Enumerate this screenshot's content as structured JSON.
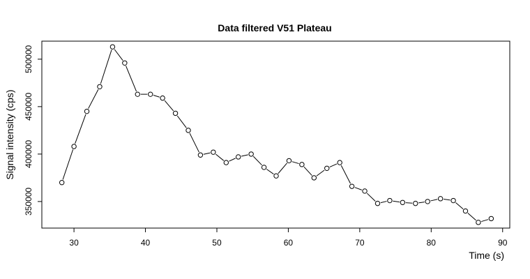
{
  "chart_data": {
    "type": "line",
    "title": "Data filtered V51 Plateau",
    "xlabel": "Time (s)",
    "ylabel": "Signal intensity (cps)",
    "xlim": [
      25.5,
      91
    ],
    "ylim": [
      322000,
      519000
    ],
    "x_ticks": [
      30,
      40,
      50,
      60,
      70,
      80,
      90
    ],
    "y_ticks": [
      350000,
      400000,
      450000,
      500000
    ],
    "grid": false,
    "legend": "none",
    "markers": "open-circle",
    "series": [
      {
        "x": [
          28.3,
          30.0,
          31.8,
          33.6,
          35.4,
          37.1,
          38.9,
          40.7,
          42.4,
          44.2,
          46.0,
          47.7,
          49.5,
          51.3,
          53.0,
          54.8,
          56.6,
          58.3,
          60.1,
          61.9,
          63.6,
          65.4,
          67.2,
          68.9,
          70.7,
          72.5,
          74.2,
          76.0,
          77.8,
          79.5,
          81.3,
          83.1,
          84.8,
          86.6,
          88.4
        ],
        "values": [
          370000,
          408000,
          445000,
          471000,
          513000,
          496000,
          463000,
          463000,
          459000,
          443000,
          425000,
          399000,
          402000,
          391000,
          397000,
          400000,
          386000,
          377000,
          393000,
          389000,
          375000,
          385000,
          391000,
          366000,
          361000,
          348000,
          351000,
          349000,
          348000,
          350000,
          353000,
          351000,
          340000,
          328000,
          332000
        ]
      }
    ]
  }
}
